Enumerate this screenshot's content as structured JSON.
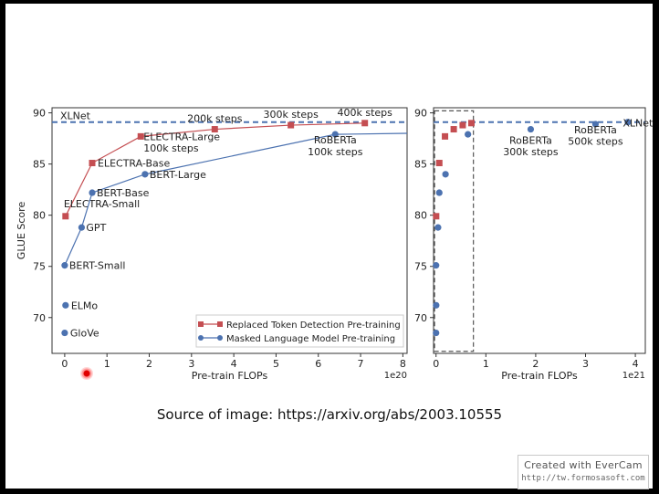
{
  "caption": "Source of image: https://arxiv.org/abs/2003.10555",
  "watermark": {
    "line1": "Created with EverCam",
    "line2": "http://tw.formosasoft.com"
  },
  "colors": {
    "rtd": "#c44e52",
    "mlm": "#4c72b0",
    "hline": "#4c72b0"
  },
  "chart_data": [
    {
      "type": "line",
      "xlabel": "Pre-train FLOPs",
      "ylabel": "GLUE Score",
      "x_scale_label": "1e20",
      "xlim": [
        -0.3,
        8.1
      ],
      "ylim": [
        66.5,
        90.5
      ],
      "xticks": [
        0,
        1,
        2,
        3,
        4,
        5,
        6,
        7,
        8
      ],
      "yticks": [
        70,
        75,
        80,
        85,
        90
      ],
      "hline": {
        "y": 89.1,
        "label": "XLNet"
      },
      "legend_position": "lower-right",
      "series": [
        {
          "name": "Replaced Token Detection Pre-training",
          "marker": "square",
          "points": [
            {
              "x": 0.02,
              "y": 79.9,
              "label": "ELECTRA-Small"
            },
            {
              "x": 0.65,
              "y": 85.1,
              "label": "ELECTRA-Base"
            },
            {
              "x": 1.8,
              "y": 87.7,
              "label": "ELECTRA-Large\n100k steps"
            },
            {
              "x": 3.55,
              "y": 88.4,
              "label": "200k steps"
            },
            {
              "x": 5.35,
              "y": 88.8,
              "label": "300k steps"
            },
            {
              "x": 7.1,
              "y": 89.0,
              "label": "400k steps"
            }
          ]
        },
        {
          "name": "Masked Language Model Pre-training",
          "marker": "circle",
          "points": [
            {
              "x": 0.0,
              "y": 68.5,
              "label": "GloVe",
              "unconnected": true
            },
            {
              "x": 0.02,
              "y": 71.2,
              "label": "ELMo",
              "unconnected": true
            },
            {
              "x": 0.0,
              "y": 75.1,
              "label": "BERT-Small"
            },
            {
              "x": 0.4,
              "y": 78.8,
              "label": "GPT"
            },
            {
              "x": 0.65,
              "y": 82.2,
              "label": "BERT-Base"
            },
            {
              "x": 1.9,
              "y": 84.0,
              "label": "BERT-Large"
            },
            {
              "x": 6.4,
              "y": 87.9,
              "label": "RoBERTa\n100k steps"
            },
            {
              "x": 8.1,
              "y": 88.0,
              "label": ""
            }
          ]
        }
      ]
    },
    {
      "type": "scatter",
      "xlabel": "Pre-train FLOPs",
      "ylabel": "",
      "x_scale_label": "1e21",
      "xlim": [
        -0.05,
        4.2
      ],
      "ylim": [
        66.5,
        90.5
      ],
      "xticks": [
        0,
        1,
        2,
        3,
        4
      ],
      "yticks": [
        70,
        75,
        80,
        85,
        90
      ],
      "hline": {
        "y": 89.1,
        "label": ""
      },
      "highlight_box": {
        "x0": -0.03,
        "x1": 0.75,
        "y0": 66.7,
        "y1": 90.2
      },
      "series": [
        {
          "name": "Replaced Token Detection Pre-training",
          "marker": "square",
          "points": [
            {
              "x": 0.002,
              "y": 79.9
            },
            {
              "x": 0.065,
              "y": 85.1
            },
            {
              "x": 0.18,
              "y": 87.7
            },
            {
              "x": 0.355,
              "y": 88.4
            },
            {
              "x": 0.535,
              "y": 88.8
            },
            {
              "x": 0.71,
              "y": 89.0
            }
          ]
        },
        {
          "name": "Masked Language Model Pre-training",
          "marker": "circle",
          "points": [
            {
              "x": 0.0,
              "y": 68.5
            },
            {
              "x": 0.002,
              "y": 71.2
            },
            {
              "x": 0.0,
              "y": 75.1
            },
            {
              "x": 0.04,
              "y": 78.8
            },
            {
              "x": 0.065,
              "y": 82.2
            },
            {
              "x": 0.19,
              "y": 84.0
            },
            {
              "x": 0.64,
              "y": 87.9
            },
            {
              "x": 1.9,
              "y": 88.4,
              "label": "RoBERTa\n300k steps"
            },
            {
              "x": 3.2,
              "y": 88.9,
              "label": "RoBERTa\n500k steps"
            },
            {
              "x": 3.85,
              "y": 89.1,
              "label": "XLNet"
            }
          ]
        }
      ]
    }
  ]
}
